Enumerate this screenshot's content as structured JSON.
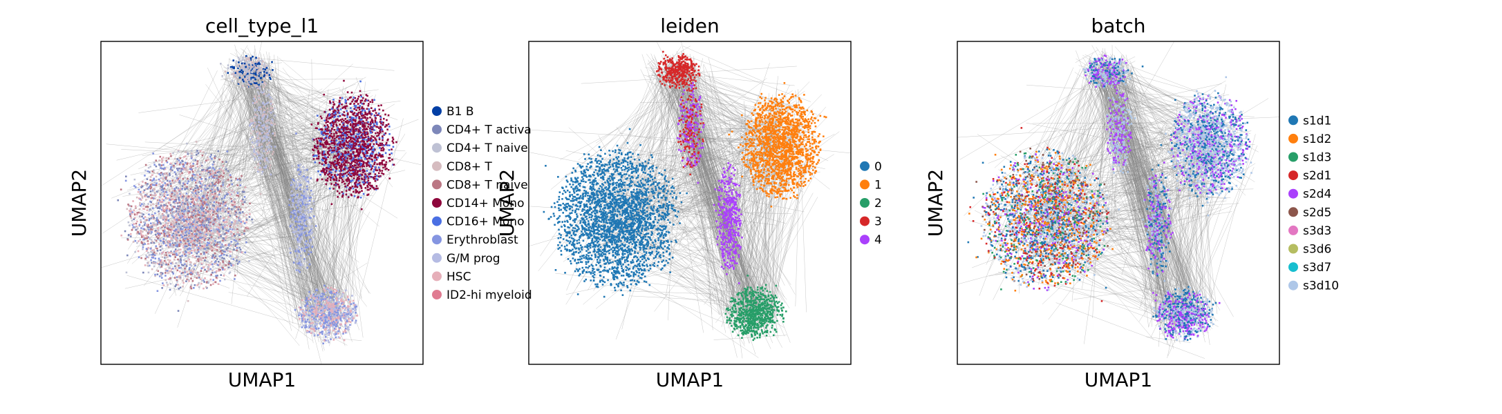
{
  "chart_data": [
    {
      "type": "scatter",
      "title": "cell_type_l1",
      "xlabel": "UMAP1",
      "ylabel": "UMAP2",
      "ticks": "none",
      "legend_position": "right",
      "background_edges_color": "#808080",
      "legend": [
        {
          "label": "B1 B",
          "color": "#023fa5"
        },
        {
          "label": "CD4+ T activa",
          "color": "#7d87b9"
        },
        {
          "label": "CD4+ T naive",
          "color": "#bec1d4"
        },
        {
          "label": "CD8+ T",
          "color": "#d6bcc0"
        },
        {
          "label": "CD8+ T naive",
          "color": "#bb7784"
        },
        {
          "label": "CD14+ Mono",
          "color": "#8e063b"
        },
        {
          "label": "CD16+ Mono",
          "color": "#4a6fe3"
        },
        {
          "label": "Erythroblast",
          "color": "#8595e1"
        },
        {
          "label": "G/M prog",
          "color": "#b5bbe3"
        },
        {
          "label": "HSC",
          "color": "#e6afb9"
        },
        {
          "label": "ID2-hi myeloid",
          "color": "#e07b91"
        }
      ]
    },
    {
      "type": "scatter",
      "title": "leiden",
      "xlabel": "UMAP1",
      "ylabel": "UMAP2",
      "ticks": "none",
      "legend_position": "right",
      "background_edges_color": "#808080",
      "legend": [
        {
          "label": "0",
          "color": "#1f77b4"
        },
        {
          "label": "1",
          "color": "#ff7f0e"
        },
        {
          "label": "2",
          "color": "#279e68"
        },
        {
          "label": "3",
          "color": "#d62728"
        },
        {
          "label": "4",
          "color": "#aa40fc"
        }
      ]
    },
    {
      "type": "scatter",
      "title": "batch",
      "xlabel": "UMAP1",
      "ylabel": "UMAP2",
      "ticks": "none",
      "legend_position": "right",
      "background_edges_color": "#808080",
      "legend": [
        {
          "label": "s1d1",
          "color": "#1f77b4"
        },
        {
          "label": "s1d2",
          "color": "#ff7f0e"
        },
        {
          "label": "s1d3",
          "color": "#279e68"
        },
        {
          "label": "s2d1",
          "color": "#d62728"
        },
        {
          "label": "s2d4",
          "color": "#aa40fc"
        },
        {
          "label": "s2d5",
          "color": "#8c564b"
        },
        {
          "label": "s3d3",
          "color": "#e377c2"
        },
        {
          "label": "s3d6",
          "color": "#b5bd61"
        },
        {
          "label": "s3d7",
          "color": "#17becf"
        },
        {
          "label": "s3d10",
          "color": "#aec7e8"
        }
      ]
    }
  ]
}
